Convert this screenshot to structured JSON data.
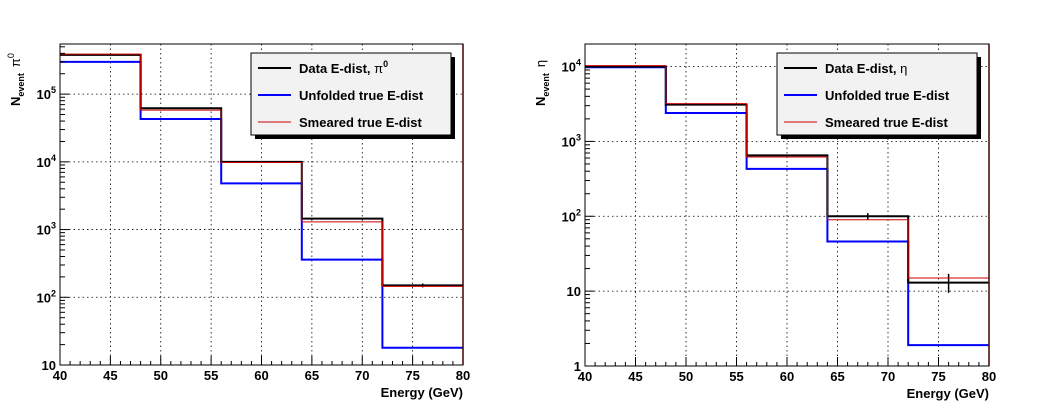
{
  "chart_data": [
    {
      "type": "step",
      "title": "",
      "xlabel": "Energy (GeV)",
      "ylabel_main": "N",
      "ylabel_sub": "event",
      "ylabel_particle": "π",
      "ylabel_particle_sup": "0",
      "xlim": [
        40,
        80
      ],
      "ylim": [
        10,
        550000
      ],
      "yscale": "log",
      "grid": true,
      "x_ticks": [
        "40",
        "45",
        "50",
        "55",
        "60",
        "65",
        "70",
        "75",
        "80"
      ],
      "y_ticks": [
        {
          "value": 10,
          "base": "10",
          "exp": ""
        },
        {
          "value": 100,
          "base": "10",
          "exp": "2"
        },
        {
          "value": 1000,
          "base": "10",
          "exp": "3"
        },
        {
          "value": 10000,
          "base": "10",
          "exp": "4"
        },
        {
          "value": 100000,
          "base": "10",
          "exp": "5"
        }
      ],
      "bin_edges": [
        40,
        48,
        56,
        64,
        72,
        80
      ],
      "series": [
        {
          "name": "Data E-dist, ",
          "name_symbol": "π",
          "name_sup": "0",
          "color": "#000000",
          "width": 2,
          "values": [
            380000,
            62000,
            10000,
            1450,
            150
          ],
          "errors": [
            {
              "x": 76,
              "low": 140,
              "high": 160
            }
          ]
        },
        {
          "name": "Unfolded true E-dist",
          "color": "#0000ff",
          "width": 2,
          "values": [
            300000,
            43000,
            4800,
            360,
            18
          ]
        },
        {
          "name": "Smeared true E-dist",
          "color": "#cc0000",
          "width": 1,
          "values": [
            390000,
            58000,
            9800,
            1300,
            145
          ]
        }
      ],
      "legend_position": "top-right"
    },
    {
      "type": "step",
      "title": "",
      "xlabel": "Energy (GeV)",
      "ylabel_main": "N",
      "ylabel_sub": "event",
      "ylabel_particle": "η",
      "xlim": [
        40,
        80
      ],
      "ylim": [
        1,
        20000
      ],
      "yscale": "log",
      "grid": true,
      "x_ticks": [
        "40",
        "45",
        "50",
        "55",
        "60",
        "65",
        "70",
        "75",
        "80"
      ],
      "y_ticks": [
        {
          "value": 1,
          "base": "1",
          "exp": ""
        },
        {
          "value": 10,
          "base": "10",
          "exp": ""
        },
        {
          "value": 100,
          "base": "10",
          "exp": "2"
        },
        {
          "value": 1000,
          "base": "10",
          "exp": "3"
        },
        {
          "value": 10000,
          "base": "10",
          "exp": "4"
        }
      ],
      "bin_edges": [
        40,
        48,
        56,
        64,
        72,
        80
      ],
      "series": [
        {
          "name": "Data E-dist, ",
          "name_symbol": "η",
          "name_sup": "",
          "color": "#000000",
          "width": 2,
          "values": [
            10000,
            3100,
            650,
            100,
            13
          ],
          "errors": [
            {
              "x": 68,
              "low": 90,
              "high": 110
            },
            {
              "x": 76,
              "low": 9.5,
              "high": 17
            }
          ]
        },
        {
          "name": "Unfolded true E-dist",
          "color": "#0000ff",
          "width": 2,
          "values": [
            9800,
            2400,
            430,
            46,
            1.9
          ]
        },
        {
          "name": "Smeared true E-dist",
          "color": "#cc0000",
          "width": 1,
          "values": [
            10300,
            3200,
            620,
            90,
            15
          ]
        }
      ],
      "legend_position": "top-right"
    }
  ]
}
